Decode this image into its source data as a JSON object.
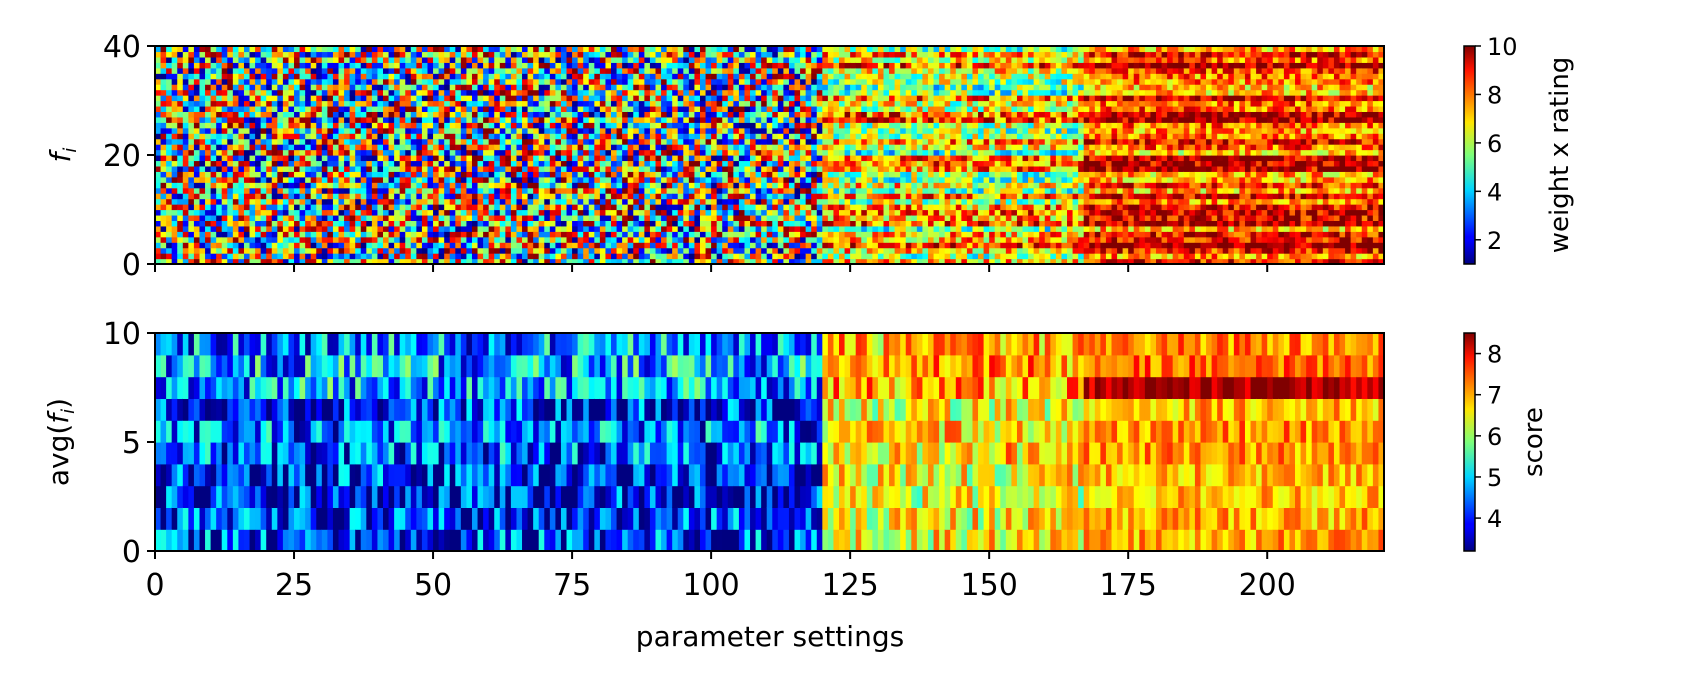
{
  "chart_data": [
    {
      "type": "heatmap",
      "panel": "top",
      "ylabel_base": "f",
      "ylabel_sub": "i",
      "xlim": [
        0,
        221
      ],
      "ylim": [
        0,
        40
      ],
      "n_rows": 40,
      "n_cols": 221,
      "yticks": [
        "0",
        "20",
        "40"
      ],
      "ytick_values": [
        0,
        20,
        40
      ],
      "xtick_values": [
        0,
        25,
        50,
        75,
        100,
        125,
        150,
        175,
        200
      ],
      "colorbar": {
        "label": "weight x rating",
        "range": [
          1,
          10
        ],
        "ticks": [
          "2",
          "4",
          "6",
          "8",
          "10"
        ],
        "tick_values": [
          2,
          4,
          6,
          8,
          10
        ],
        "colormap": "jet"
      },
      "segments": [
        {
          "from": 0,
          "to": 120,
          "pattern": "mixed, uniform across 1-10"
        },
        {
          "from": 120,
          "to": 167,
          "pattern": "medium-high, mostly 5-9"
        },
        {
          "from": 167,
          "to": 221,
          "pattern": "high, mostly 7-10"
        }
      ]
    },
    {
      "type": "heatmap",
      "panel": "bottom",
      "ylabel_base": "avg(",
      "ylabel_mid": "f",
      "ylabel_sub": "i",
      "ylabel_end": ")",
      "xlabel": "parameter settings",
      "xlim": [
        0,
        221
      ],
      "ylim": [
        0,
        10
      ],
      "n_rows": 10,
      "n_cols": 221,
      "yticks": [
        "0",
        "5",
        "10"
      ],
      "ytick_values": [
        0,
        5,
        10
      ],
      "xticks": [
        "0",
        "25",
        "50",
        "75",
        "100",
        "125",
        "150",
        "175",
        "200"
      ],
      "xtick_values": [
        0,
        25,
        50,
        75,
        100,
        125,
        150,
        175,
        200
      ],
      "colorbar": {
        "label": "score",
        "range": [
          3.2,
          8.5
        ],
        "ticks": [
          "4",
          "5",
          "6",
          "7",
          "8"
        ],
        "tick_values": [
          4,
          5,
          6,
          7,
          8
        ],
        "colormap": "jet"
      },
      "segments": [
        {
          "from": 0,
          "to": 120,
          "pattern": "low, mostly 3.5-6"
        },
        {
          "from": 120,
          "to": 167,
          "pattern": "medium-high, mostly 6-7.5"
        },
        {
          "from": 167,
          "to": 221,
          "pattern": "high, mostly 6.5-8.3"
        }
      ]
    }
  ]
}
